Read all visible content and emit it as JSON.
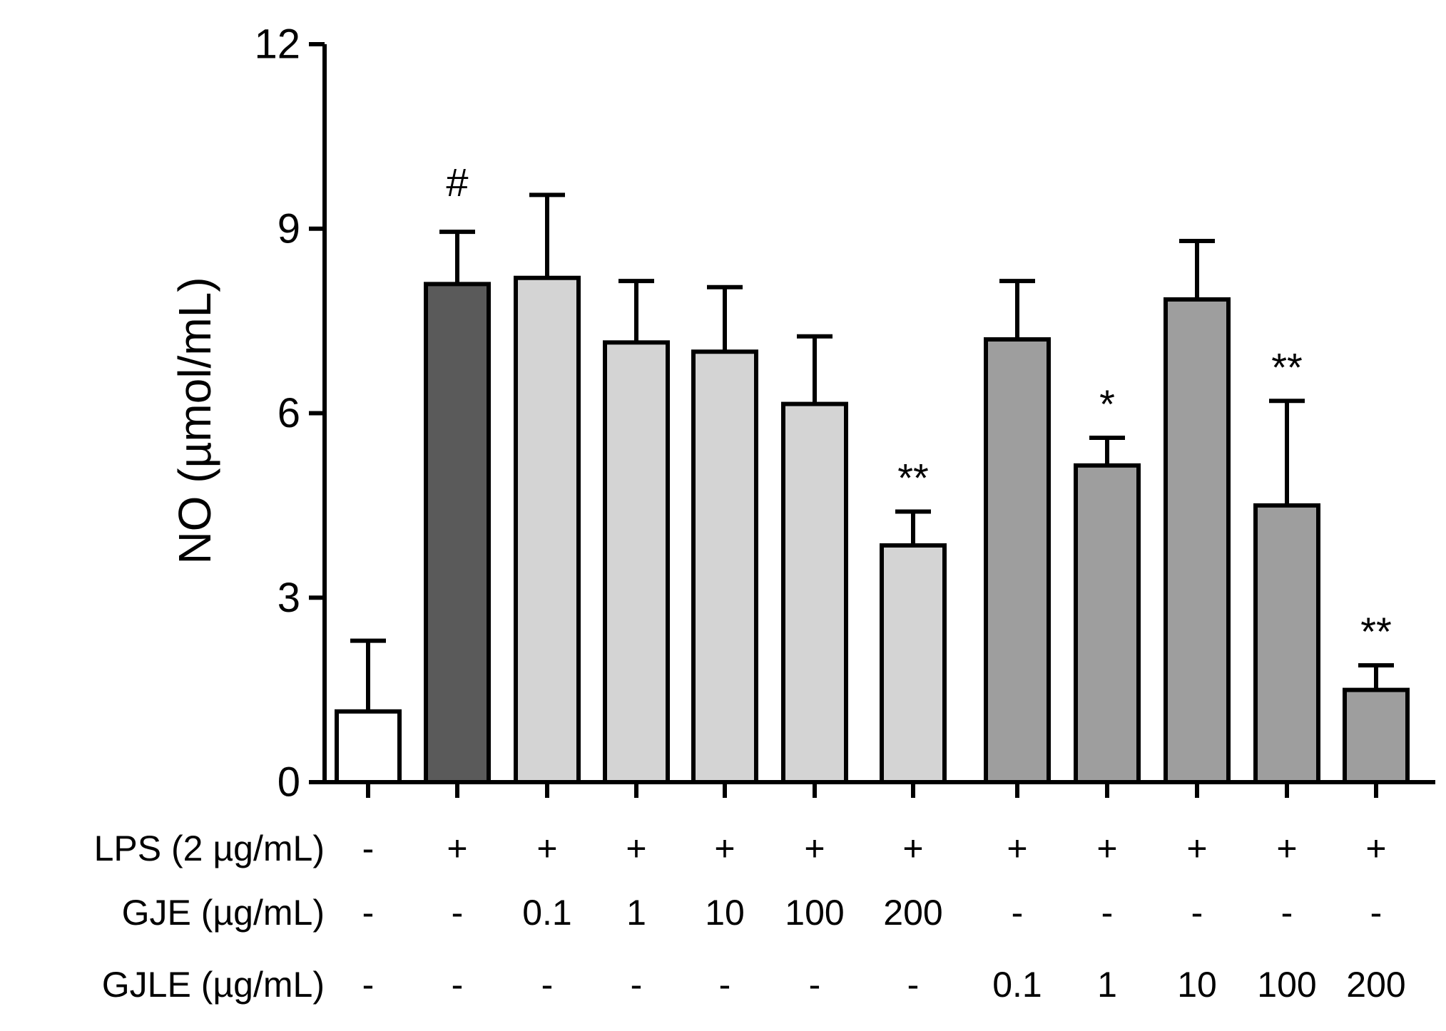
{
  "chart_data": {
    "type": "bar",
    "title": "",
    "xlabel": "",
    "ylabel": "NO (µmol/mL)",
    "ylim": [
      0,
      12
    ],
    "yticks": [
      "0",
      "3",
      "6",
      "9",
      "12"
    ],
    "values": [
      1.15,
      8.1,
      8.2,
      7.15,
      7.0,
      6.15,
      3.85,
      7.2,
      5.15,
      7.85,
      4.5,
      1.5
    ],
    "errors": [
      1.15,
      0.85,
      1.35,
      1.0,
      1.05,
      1.1,
      0.55,
      0.95,
      0.45,
      0.95,
      1.7,
      0.4
    ],
    "groups": [
      "control",
      "lps",
      "gje",
      "gje",
      "gje",
      "gje",
      "gje",
      "gjle",
      "gjle",
      "gjle",
      "gjle",
      "gjle"
    ],
    "colors": {
      "control": "#ffffff",
      "lps": "#5a5a5a",
      "gje": "#d4d4d4",
      "gjle": "#9e9e9e"
    },
    "significance": [
      "",
      "#",
      "",
      "",
      "",
      "",
      "**",
      "",
      "*",
      "",
      "**",
      "**"
    ],
    "treatment_rows": [
      {
        "label": "LPS (2 µg/mL)",
        "values": [
          "-",
          "+",
          "+",
          "+",
          "+",
          "+",
          "+",
          "+",
          "+",
          "+",
          "+",
          "+"
        ]
      },
      {
        "label": "GJE (µg/mL)",
        "values": [
          "-",
          "-",
          "0.1",
          "1",
          "10",
          "100",
          "200",
          "-",
          "-",
          "-",
          "-",
          "-"
        ]
      },
      {
        "label": "GJLE (µg/mL)",
        "values": [
          "-",
          "-",
          "-",
          "-",
          "-",
          "-",
          "-",
          "0.1",
          "1",
          "10",
          "100",
          "200"
        ]
      }
    ]
  }
}
